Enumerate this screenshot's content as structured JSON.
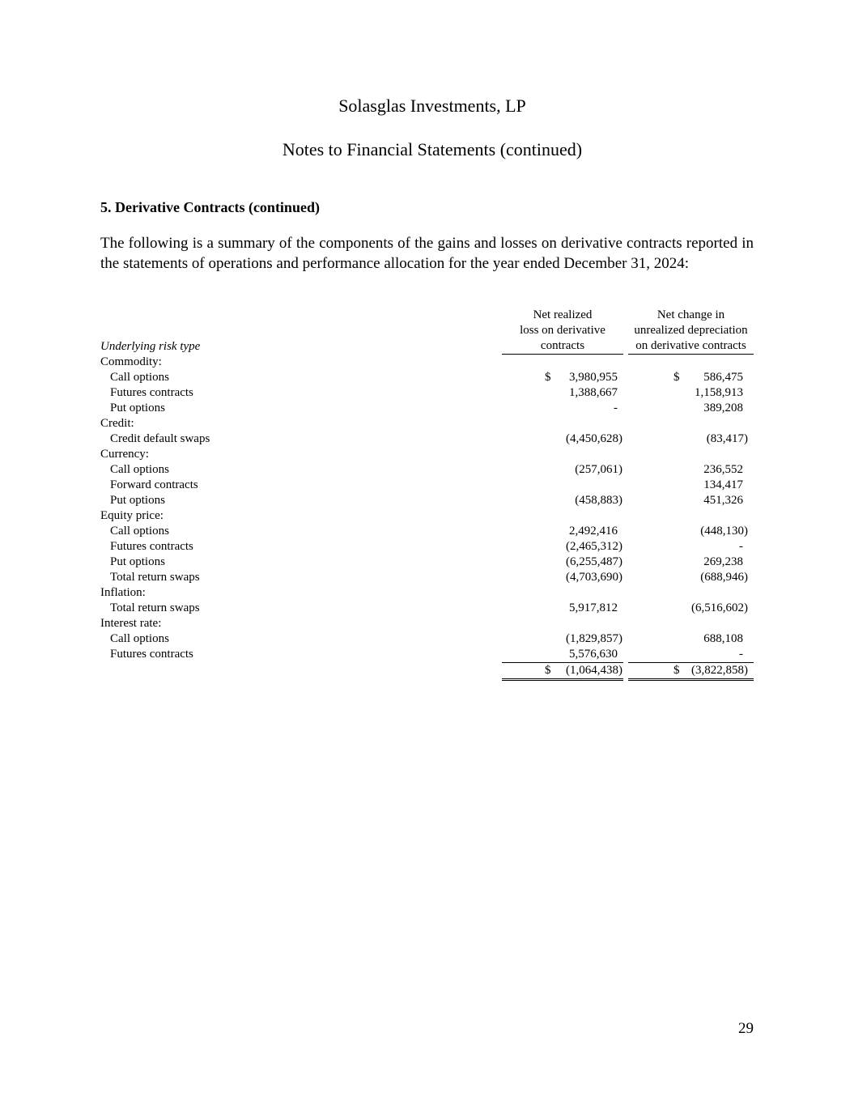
{
  "header": {
    "company": "Solasglas Investments, LP",
    "subtitle": "Notes to Financial Statements (continued)"
  },
  "section_heading": "5.  Derivative Contracts (continued)",
  "paragraph": "The following is a summary of the components of the gains and losses on derivative contracts reported in the statements of operations and performance allocation for the year ended December 31, 2024:",
  "table": {
    "row_label_header": "Underlying risk type",
    "col1_header": [
      "Net realized",
      "loss on derivative",
      "contracts"
    ],
    "col2_header": [
      "Net change in",
      "unrealized depreciation",
      "on derivative contracts"
    ],
    "rows": [
      {
        "label": "Commodity:",
        "group": true
      },
      {
        "label": "Call options",
        "v1": "3,980,955",
        "v2": "586,475",
        "dollar": true
      },
      {
        "label": "Futures contracts",
        "v1": "1,388,667",
        "v2": "1,158,913"
      },
      {
        "label": "Put options",
        "v1": "-",
        "v2": "389,208"
      },
      {
        "label": "Credit:",
        "group": true
      },
      {
        "label": "Credit default swaps",
        "v1": "(4,450,628)",
        "v2": "(83,417)"
      },
      {
        "label": "Currency:",
        "group": true
      },
      {
        "label": "Call options",
        "v1": "(257,061)",
        "v2": "236,552"
      },
      {
        "label": "Forward contracts",
        "v1": "",
        "v2": "134,417"
      },
      {
        "label": "Put options",
        "v1": "(458,883)",
        "v2": "451,326"
      },
      {
        "label": "Equity price:",
        "group": true
      },
      {
        "label": "Call options",
        "v1": "2,492,416",
        "v2": "(448,130)"
      },
      {
        "label": "Futures contracts",
        "v1": "(2,465,312)",
        "v2": "-"
      },
      {
        "label": "Put options",
        "v1": "(6,255,487)",
        "v2": "269,238"
      },
      {
        "label": "Total return swaps",
        "v1": "(4,703,690)",
        "v2": "(688,946)"
      },
      {
        "label": "Inflation:",
        "group": true
      },
      {
        "label": "Total return swaps",
        "v1": "5,917,812",
        "v2": "(6,516,602)"
      },
      {
        "label": "Interest rate:",
        "group": true
      },
      {
        "label": "Call options",
        "v1": "(1,829,857)",
        "v2": "688,108"
      },
      {
        "label": "Futures contracts",
        "v1": "5,576,630",
        "v2": "-"
      }
    ],
    "total": {
      "v1": "(1,064,438)",
      "v2": "(3,822,858)"
    },
    "currency_symbol": "$"
  },
  "page_number": "29"
}
